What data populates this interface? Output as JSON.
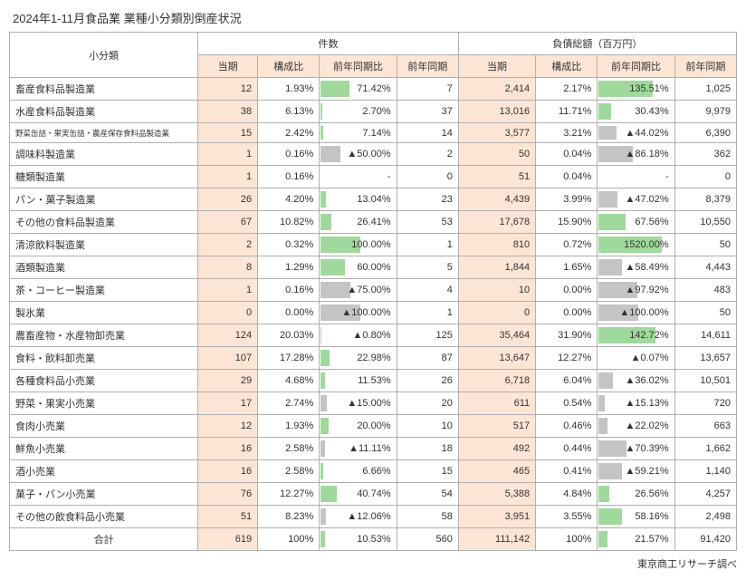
{
  "title": "2024年1-11月食品業 業種小分類別倒産状況",
  "source": "東京商工リサーチ調べ",
  "headers": {
    "category": "小分類",
    "count_group": "件数",
    "debt_group": "負債総額（百万円）",
    "current": "当期",
    "ratio": "構成比",
    "yoy": "前年同期比",
    "prev": "前年同期"
  },
  "colors": {
    "highlight_bg": "#fde5d5",
    "bar_green": "#9fd99b",
    "bar_gray": "#c4c4c4",
    "border": "#b0b0b0"
  },
  "yoy_bar_max": 160,
  "rows": [
    {
      "label": "畜産食料品製造業",
      "cnt_cur": "12",
      "cnt_ratio": "1.93%",
      "cnt_yoy": "71.42%",
      "cnt_yoy_num": 71.42,
      "cnt_prev": "7",
      "debt_cur": "2,414",
      "debt_ratio": "2.17%",
      "debt_yoy": "135.51%",
      "debt_yoy_num": 135.51,
      "debt_prev": "1,025"
    },
    {
      "label": "水産食料品製造業",
      "cnt_cur": "38",
      "cnt_ratio": "6.13%",
      "cnt_yoy": "2.70%",
      "cnt_yoy_num": 2.7,
      "cnt_prev": "37",
      "debt_cur": "13,016",
      "debt_ratio": "11.71%",
      "debt_yoy": "30.43%",
      "debt_yoy_num": 30.43,
      "debt_prev": "9,979"
    },
    {
      "label": "野菜缶詰・果実缶詰・農産保存食料品製造業",
      "small": true,
      "cnt_cur": "15",
      "cnt_ratio": "2.42%",
      "cnt_yoy": "7.14%",
      "cnt_yoy_num": 7.14,
      "cnt_prev": "14",
      "debt_cur": "3,577",
      "debt_ratio": "3.21%",
      "debt_yoy": "▲44.02%",
      "debt_yoy_num": -44.02,
      "debt_prev": "6,390"
    },
    {
      "label": "調味料製造業",
      "cnt_cur": "1",
      "cnt_ratio": "0.16%",
      "cnt_yoy": "▲50.00%",
      "cnt_yoy_num": -50.0,
      "cnt_prev": "2",
      "debt_cur": "50",
      "debt_ratio": "0.04%",
      "debt_yoy": "▲86.18%",
      "debt_yoy_num": -86.18,
      "debt_prev": "362"
    },
    {
      "label": "糖類製造業",
      "cnt_cur": "1",
      "cnt_ratio": "0.16%",
      "cnt_yoy": "-",
      "cnt_yoy_num": null,
      "cnt_prev": "0",
      "debt_cur": "51",
      "debt_ratio": "0.04%",
      "debt_yoy": "-",
      "debt_yoy_num": null,
      "debt_prev": "0"
    },
    {
      "label": "パン・菓子製造業",
      "cnt_cur": "26",
      "cnt_ratio": "4.20%",
      "cnt_yoy": "13.04%",
      "cnt_yoy_num": 13.04,
      "cnt_prev": "23",
      "debt_cur": "4,439",
      "debt_ratio": "3.99%",
      "debt_yoy": "▲47.02%",
      "debt_yoy_num": -47.02,
      "debt_prev": "8,379"
    },
    {
      "label": "その他の食料品製造業",
      "cnt_cur": "67",
      "cnt_ratio": "10.82%",
      "cnt_yoy": "26.41%",
      "cnt_yoy_num": 26.41,
      "cnt_prev": "53",
      "debt_cur": "17,678",
      "debt_ratio": "15.90%",
      "debt_yoy": "67.56%",
      "debt_yoy_num": 67.56,
      "debt_prev": "10,550"
    },
    {
      "label": "清涼飲料製造業",
      "cnt_cur": "2",
      "cnt_ratio": "0.32%",
      "cnt_yoy": "100.00%",
      "cnt_yoy_num": 100.0,
      "cnt_prev": "1",
      "debt_cur": "810",
      "debt_ratio": "0.72%",
      "debt_yoy": "1520.00%",
      "debt_yoy_num": 1520.0,
      "debt_prev": "50"
    },
    {
      "label": "酒類製造業",
      "cnt_cur": "8",
      "cnt_ratio": "1.29%",
      "cnt_yoy": "60.00%",
      "cnt_yoy_num": 60.0,
      "cnt_prev": "5",
      "debt_cur": "1,844",
      "debt_ratio": "1.65%",
      "debt_yoy": "▲58.49%",
      "debt_yoy_num": -58.49,
      "debt_prev": "4,443"
    },
    {
      "label": "茶・コーヒー製造業",
      "cnt_cur": "1",
      "cnt_ratio": "0.16%",
      "cnt_yoy": "▲75.00%",
      "cnt_yoy_num": -75.0,
      "cnt_prev": "4",
      "debt_cur": "10",
      "debt_ratio": "0.00%",
      "debt_yoy": "▲97.92%",
      "debt_yoy_num": -97.92,
      "debt_prev": "483"
    },
    {
      "label": "製氷業",
      "cnt_cur": "0",
      "cnt_ratio": "0.00%",
      "cnt_yoy": "▲100.00%",
      "cnt_yoy_num": -100.0,
      "cnt_prev": "1",
      "debt_cur": "0",
      "debt_ratio": "0.00%",
      "debt_yoy": "▲100.00%",
      "debt_yoy_num": -100.0,
      "debt_prev": "50"
    },
    {
      "label": "農畜産物・水産物卸売業",
      "cnt_cur": "124",
      "cnt_ratio": "20.03%",
      "cnt_yoy": "▲0.80%",
      "cnt_yoy_num": -0.8,
      "cnt_prev": "125",
      "debt_cur": "35,464",
      "debt_ratio": "31.90%",
      "debt_yoy": "142.72%",
      "debt_yoy_num": 142.72,
      "debt_prev": "14,611"
    },
    {
      "label": "食料・飲料卸売業",
      "cnt_cur": "107",
      "cnt_ratio": "17.28%",
      "cnt_yoy": "22.98%",
      "cnt_yoy_num": 22.98,
      "cnt_prev": "87",
      "debt_cur": "13,647",
      "debt_ratio": "12.27%",
      "debt_yoy": "▲0.07%",
      "debt_yoy_num": -0.07,
      "debt_prev": "13,657"
    },
    {
      "label": "各種食料品小売業",
      "cnt_cur": "29",
      "cnt_ratio": "4.68%",
      "cnt_yoy": "11.53%",
      "cnt_yoy_num": 11.53,
      "cnt_prev": "26",
      "debt_cur": "6,718",
      "debt_ratio": "6.04%",
      "debt_yoy": "▲36.02%",
      "debt_yoy_num": -36.02,
      "debt_prev": "10,501"
    },
    {
      "label": "野菜・果実小売業",
      "cnt_cur": "17",
      "cnt_ratio": "2.74%",
      "cnt_yoy": "▲15.00%",
      "cnt_yoy_num": -15.0,
      "cnt_prev": "20",
      "debt_cur": "611",
      "debt_ratio": "0.54%",
      "debt_yoy": "▲15.13%",
      "debt_yoy_num": -15.13,
      "debt_prev": "720"
    },
    {
      "label": "食肉小売業",
      "cnt_cur": "12",
      "cnt_ratio": "1.93%",
      "cnt_yoy": "20.00%",
      "cnt_yoy_num": 20.0,
      "cnt_prev": "10",
      "debt_cur": "517",
      "debt_ratio": "0.46%",
      "debt_yoy": "▲22.02%",
      "debt_yoy_num": -22.02,
      "debt_prev": "663"
    },
    {
      "label": "鮮魚小売業",
      "cnt_cur": "16",
      "cnt_ratio": "2.58%",
      "cnt_yoy": "▲11.11%",
      "cnt_yoy_num": -11.11,
      "cnt_prev": "18",
      "debt_cur": "492",
      "debt_ratio": "0.44%",
      "debt_yoy": "▲70.39%",
      "debt_yoy_num": -70.39,
      "debt_prev": "1,662"
    },
    {
      "label": "酒小売業",
      "cnt_cur": "16",
      "cnt_ratio": "2.58%",
      "cnt_yoy": "6.66%",
      "cnt_yoy_num": 6.66,
      "cnt_prev": "15",
      "debt_cur": "465",
      "debt_ratio": "0.41%",
      "debt_yoy": "▲59.21%",
      "debt_yoy_num": -59.21,
      "debt_prev": "1,140"
    },
    {
      "label": "菓子・パン小売業",
      "cnt_cur": "76",
      "cnt_ratio": "12.27%",
      "cnt_yoy": "40.74%",
      "cnt_yoy_num": 40.74,
      "cnt_prev": "54",
      "debt_cur": "5,388",
      "debt_ratio": "4.84%",
      "debt_yoy": "26.56%",
      "debt_yoy_num": 26.56,
      "debt_prev": "4,257"
    },
    {
      "label": "その他の飲食料品小売業",
      "cnt_cur": "51",
      "cnt_ratio": "8.23%",
      "cnt_yoy": "▲12.06%",
      "cnt_yoy_num": -12.06,
      "cnt_prev": "58",
      "debt_cur": "3,951",
      "debt_ratio": "3.55%",
      "debt_yoy": "58.16%",
      "debt_yoy_num": 58.16,
      "debt_prev": "2,498"
    }
  ],
  "total": {
    "label": "合計",
    "cnt_cur": "619",
    "cnt_ratio": "100%",
    "cnt_yoy": "10.53%",
    "cnt_yoy_num": 10.53,
    "cnt_prev": "560",
    "debt_cur": "111,142",
    "debt_ratio": "100%",
    "debt_yoy": "21.57%",
    "debt_yoy_num": 21.57,
    "debt_prev": "91,420"
  }
}
